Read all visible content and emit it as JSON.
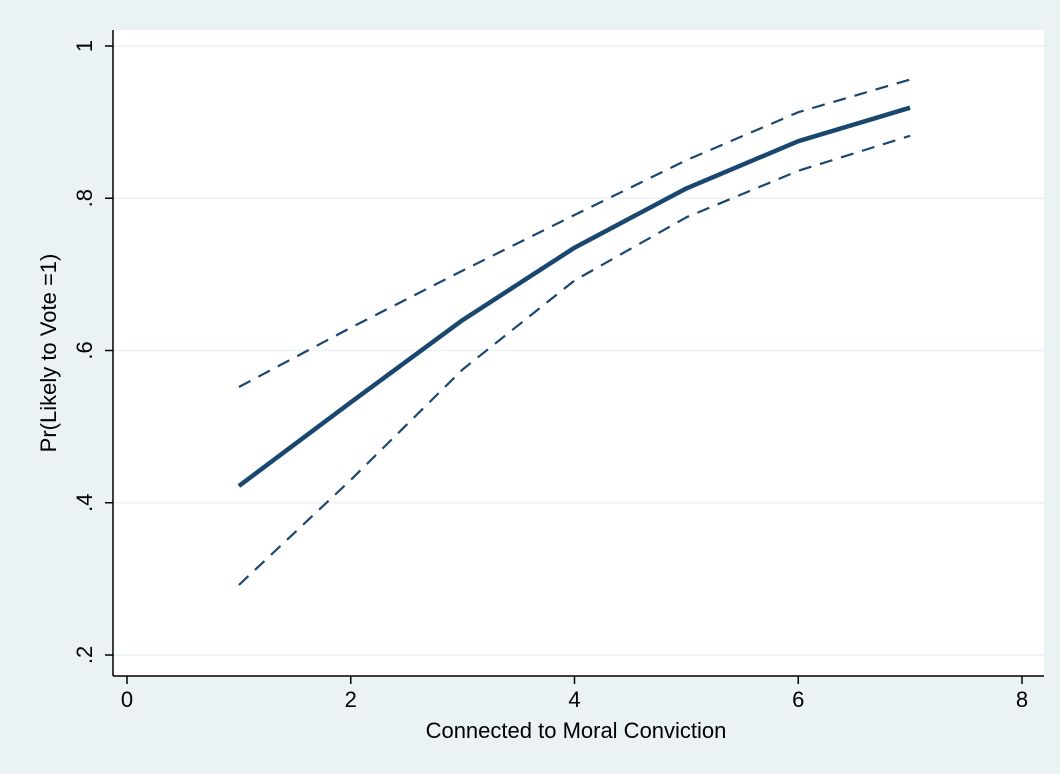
{
  "chart_data": {
    "type": "line",
    "xlabel": "Connected to Moral Conviction",
    "ylabel": "Pr(Likely to Vote =1)",
    "xlim": [
      0,
      8
    ],
    "ylim": [
      0.2,
      1.0
    ],
    "x_ticks": [
      0,
      2,
      4,
      6,
      8
    ],
    "x_tick_labels": [
      "0",
      "2",
      "4",
      "6",
      "8"
    ],
    "y_ticks": [
      0.2,
      0.4,
      0.6,
      0.8,
      1.0
    ],
    "y_tick_labels": [
      ".2",
      ".4",
      ".6",
      ".8",
      "1"
    ],
    "grid": "horizontal",
    "legend": "none",
    "x": [
      1,
      2,
      3,
      4,
      5,
      6,
      7
    ],
    "series": [
      {
        "role": "estimate",
        "style": "solid",
        "values": [
          0.422,
          0.532,
          0.64,
          0.735,
          0.813,
          0.875,
          0.919
        ]
      },
      {
        "role": "upper-ci",
        "style": "dashed",
        "values": [
          0.552,
          0.63,
          0.705,
          0.778,
          0.85,
          0.913,
          0.956
        ]
      },
      {
        "role": "lower-ci",
        "style": "dashed",
        "values": [
          0.292,
          0.43,
          0.575,
          0.692,
          0.775,
          0.836,
          0.882
        ]
      }
    ],
    "colors": {
      "background": "#eaf2f3",
      "plot_area": "#ffffff",
      "line": "#1a476f",
      "grid": "#eaf2f3",
      "axis": "#000000"
    }
  }
}
